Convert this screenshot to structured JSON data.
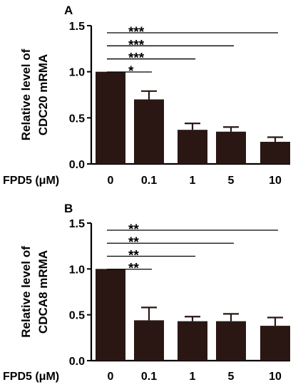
{
  "chart_data": [
    {
      "type": "bar",
      "panel": "A",
      "ylabel_lines": [
        "Relative level of",
        "CDC20 mRMA"
      ],
      "xlabel": "FPD5 (μM)",
      "categories": [
        "0",
        "0.1",
        "1",
        "5",
        "10"
      ],
      "values": [
        1.0,
        0.7,
        0.37,
        0.35,
        0.24
      ],
      "errors": [
        0.0,
        0.09,
        0.07,
        0.05,
        0.05
      ],
      "ylim": [
        0,
        1.5
      ],
      "yticks": [
        "0.0",
        "0.5",
        "1.0",
        "1.5"
      ],
      "bar_color": "#2a1714",
      "significance": [
        {
          "from": 0,
          "to": 1,
          "label": "*"
        },
        {
          "from": 0,
          "to": 2,
          "label": "***"
        },
        {
          "from": 0,
          "to": 3,
          "label": "***"
        },
        {
          "from": 0,
          "to": 4,
          "label": "***"
        }
      ]
    },
    {
      "type": "bar",
      "panel": "B",
      "ylabel_lines": [
        "Relative level of",
        "CDCA8 mRMA"
      ],
      "xlabel": "FPD5 (μM)",
      "categories": [
        "0",
        "0.1",
        "1",
        "5",
        "10"
      ],
      "values": [
        1.0,
        0.44,
        0.43,
        0.43,
        0.38
      ],
      "errors": [
        0.0,
        0.14,
        0.05,
        0.08,
        0.09
      ],
      "ylim": [
        0,
        1.5
      ],
      "yticks": [
        "0.0",
        "0.5",
        "1.0",
        "1.5"
      ],
      "bar_color": "#2a1714",
      "significance": [
        {
          "from": 0,
          "to": 1,
          "label": "**"
        },
        {
          "from": 0,
          "to": 2,
          "label": "**"
        },
        {
          "from": 0,
          "to": 3,
          "label": "**"
        },
        {
          "from": 0,
          "to": 4,
          "label": "**"
        }
      ]
    }
  ]
}
